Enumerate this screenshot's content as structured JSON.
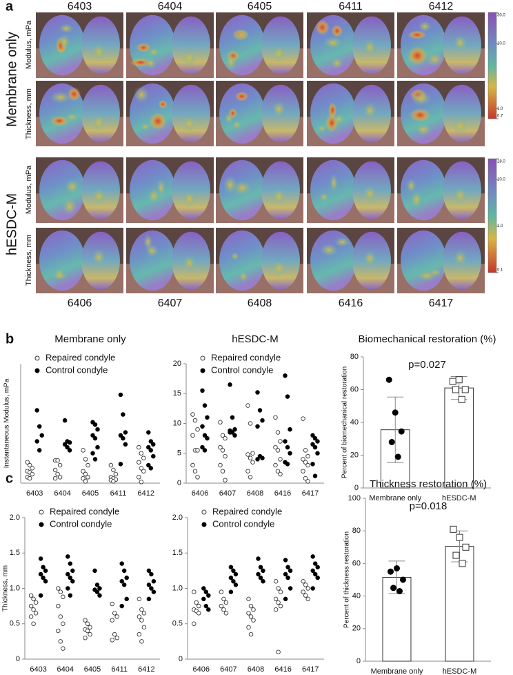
{
  "panel_labels": [
    "a",
    "b",
    "c"
  ],
  "panel_a": {
    "top_specimens": [
      "6403",
      "6404",
      "6405",
      "6411",
      "6412"
    ],
    "bottom_specimens": [
      "6406",
      "6407",
      "6408",
      "6416",
      "6417"
    ],
    "groups": [
      "Membrane only",
      "hESDC-M"
    ],
    "row_labels": [
      "Modulus, mPa",
      "Thickness, mm"
    ],
    "colorbars": [
      {
        "log": true,
        "lim": [
          0.7,
          30
        ],
        "ticks": [
          {
            "value": 30,
            "label": "30.0"
          },
          {
            "value": 10,
            "label": "10.0"
          },
          {
            "value": 1,
            "label": "1.0"
          },
          0.7
        ]
      },
      {
        "log": true,
        "lim": [
          0.1,
          28
        ],
        "ticks": [
          {
            "value": 28,
            "label": "28.0"
          },
          {
            "value": 10,
            "label": "10.0"
          },
          {
            "value": 1,
            "label": "1.0"
          },
          0.1
        ]
      }
    ]
  },
  "chart_data": [
    {
      "type": "strip",
      "title": "Membrane only",
      "ylabel": "Instantaneous Modulus, mPa",
      "categories": [
        "6403",
        "6404",
        "6405",
        "6411",
        "6412"
      ],
      "ylim": [
        0,
        20
      ],
      "series": [
        {
          "name": "Repaired condyle",
          "color": "#333333",
          "marker_fill": "#ffffff",
          "values": [
            [
              3.5,
              3,
              2.5,
              2,
              1.8,
              1.5,
              1,
              0.8
            ],
            [
              3.8,
              3.8,
              3,
              2.2,
              1.5,
              1,
              0.8
            ],
            [
              5.5,
              4,
              3,
              2,
              1.5,
              1,
              0.8,
              0.3
            ],
            [
              3,
              2.2,
              1.5,
              1,
              0.8,
              0.6,
              0.5,
              0.3
            ],
            [
              6,
              5,
              4.2,
              3.5,
              2.5,
              2,
              1,
              0.2
            ]
          ]
        },
        {
          "name": "Control condyle",
          "color": "#000000",
          "marker_fill": "#000000",
          "values": [
            [
              12.2,
              9.5,
              8,
              7,
              5.5
            ],
            [
              10.5,
              7,
              6.8,
              6.5,
              6,
              5.5
            ],
            [
              10.2,
              9.8,
              9,
              8,
              7.5,
              6,
              5,
              4
            ],
            [
              14.8,
              11.5,
              8.5,
              8,
              7.5,
              6.5,
              3.2
            ],
            [
              8.5,
              7,
              6.5,
              6,
              5.5,
              4.5,
              3,
              2.5
            ]
          ]
        }
      ]
    },
    {
      "type": "strip",
      "title": "hESDC-M",
      "categories": [
        "6406",
        "6407",
        "6408",
        "6416",
        "6417"
      ],
      "ylim": [
        0,
        20
      ],
      "yticks": [
        0,
        5,
        10,
        15,
        20
      ],
      "series": [
        {
          "name": "Repaired condyle",
          "color": "#333333",
          "marker_fill": "#ffffff",
          "values": [
            [
              11.5,
              10.5,
              9,
              8,
              5.5,
              5.5,
              3,
              2,
              1
            ],
            [
              10.2,
              8,
              7.5,
              6,
              5.5,
              4.5,
              3,
              2,
              0.5
            ],
            [
              13,
              10,
              5,
              4.8,
              4.2,
              3.5,
              2,
              1
            ],
            [
              11,
              8.5,
              7,
              6,
              5.5,
              4,
              3,
              2,
              1.5
            ],
            [
              10.8,
              5.5,
              4.5,
              4,
              3.5,
              3,
              2,
              0.8,
              0.3
            ]
          ]
        },
        {
          "name": "Control condyle",
          "color": "#000000",
          "marker_fill": "#000000",
          "values": [
            [
              15.5,
              13,
              11,
              9.5,
              8,
              7.5,
              6,
              5.5
            ],
            [
              16.5,
              11,
              9,
              8.8,
              8.5,
              8,
              8.5
            ],
            [
              15.2,
              12.2,
              10.5,
              9.5,
              4.5,
              4.2,
              4
            ],
            [
              18,
              14.5,
              9,
              7,
              6,
              5,
              3.5,
              3.2
            ],
            [
              8,
              7.5,
              7,
              6.5,
              6,
              5,
              3.2,
              1.2
            ]
          ]
        }
      ]
    },
    {
      "type": "bar",
      "title": "Biomechanical restoration (%)",
      "ylabel": "Percent of biomechanical restoration",
      "categories": [
        "Membrane only",
        "hESDC-M"
      ],
      "values": [
        35.5,
        61
      ],
      "errors": [
        20,
        7
      ],
      "points": [
        [
          66,
          46,
          34.5,
          28,
          19
        ],
        [
          65,
          66,
          60,
          60,
          54
        ]
      ],
      "point_style": [
        {
          "shape": "circle",
          "fill": "#000000"
        },
        {
          "shape": "square",
          "fill": "#ffffff"
        }
      ],
      "annotation": "p=0.027",
      "ylim": [
        0,
        80
      ],
      "yticks": [
        0,
        20,
        40,
        60,
        80
      ]
    },
    {
      "type": "strip",
      "ylabel": "Thickness, mm",
      "categories": [
        "6403",
        "6404",
        "6405",
        "6411",
        "6412"
      ],
      "ylim": [
        0,
        2
      ],
      "yticks": [
        0,
        0.5,
        {
          "value": 1,
          "label": "1.0"
        },
        1.5,
        {
          "value": 2,
          "label": "2.0"
        }
      ],
      "series": [
        {
          "name": "Repaired condyle",
          "color": "#333333",
          "marker_fill": "#ffffff",
          "values": [
            [
              0.9,
              0.85,
              0.8,
              0.75,
              0.7,
              0.65,
              0.6,
              0.5
            ],
            [
              1.0,
              0.95,
              0.88,
              0.75,
              0.6,
              0.5,
              0.4,
              0.25,
              0.15
            ],
            [
              0.55,
              0.5,
              0.45,
              0.42,
              0.4,
              0.35,
              0.3
            ],
            [
              0.78,
              0.65,
              0.6,
              0.55,
              0.35,
              0.3,
              0.27
            ],
            [
              0.85,
              0.7,
              0.65,
              0.6,
              0.55,
              0.45,
              0.35,
              0.25
            ]
          ]
        },
        {
          "name": "Control condyle",
          "color": "#000000",
          "marker_fill": "#000000",
          "values": [
            [
              1.42,
              1.3,
              1.25,
              1.2,
              1.15,
              1.1,
              0.9
            ],
            [
              1.45,
              1.35,
              1.25,
              1.2,
              1.15,
              1.1,
              1.0,
              0.9
            ],
            [
              1.25,
              1.05,
              1.0,
              0.98,
              0.95,
              0.9
            ],
            [
              1.35,
              1.25,
              1.15,
              1.1,
              1.05,
              0.85,
              0.75
            ],
            [
              1.25,
              1.2,
              1.1,
              1.05,
              1.0,
              0.95,
              0.85
            ]
          ]
        }
      ]
    },
    {
      "type": "strip",
      "categories": [
        "6406",
        "6407",
        "6408",
        "6416",
        "6417"
      ],
      "ylim": [
        0,
        2
      ],
      "yticks": [
        0,
        0.5,
        {
          "value": 1,
          "label": "1.0"
        },
        1.5,
        {
          "value": 2,
          "label": "2.0"
        }
      ],
      "series": [
        {
          "name": "Repaired condyle",
          "color": "#333333",
          "marker_fill": "#ffffff",
          "values": [
            [
              0.95,
              0.8,
              0.75,
              0.7,
              0.68,
              0.65,
              0.5
            ],
            [
              0.95,
              0.85,
              0.8,
              0.75,
              0.7,
              0.65
            ],
            [
              0.85,
              0.75,
              0.7,
              0.65,
              0.6,
              0.55,
              0.45,
              0.35
            ],
            [
              1.1,
              1.0,
              0.95,
              0.85,
              0.8,
              0.75,
              0.7,
              0.1
            ],
            [
              1.1,
              1.05,
              1.0,
              0.95,
              0.9,
              0.85
            ]
          ]
        },
        {
          "name": "Control condyle",
          "color": "#000000",
          "marker_fill": "#000000",
          "values": [
            [
              1.0,
              0.95,
              0.9,
              0.85,
              0.75,
              0.7
            ],
            [
              1.3,
              1.25,
              1.2,
              1.15,
              1.1,
              1.05,
              0.95
            ],
            [
              1.42,
              1.3,
              1.25,
              1.2,
              1.15,
              1.1
            ],
            [
              1.4,
              1.3,
              1.25,
              1.2,
              1.15,
              1.0,
              0.85
            ],
            [
              1.45,
              1.35,
              1.3,
              1.25,
              1.2,
              1.15,
              1.0
            ]
          ]
        }
      ]
    },
    {
      "type": "bar",
      "title": "Thickness restoration (%)",
      "ylabel": "Percent of thickness restoration",
      "categories": [
        "Membrane only",
        "hESDC-M"
      ],
      "values": [
        51.5,
        70.5
      ],
      "errors": [
        10,
        9.5
      ],
      "points": [
        [
          55,
          57,
          50,
          45,
          43
        ],
        [
          81,
          76,
          70,
          65,
          60
        ]
      ],
      "point_style": [
        {
          "shape": "circle",
          "fill": "#000000"
        },
        {
          "shape": "square",
          "fill": "#ffffff"
        }
      ],
      "annotation": "p=0.018",
      "ylim": [
        0,
        100
      ],
      "yticks": [
        0,
        20,
        40,
        60,
        80,
        100
      ]
    }
  ]
}
